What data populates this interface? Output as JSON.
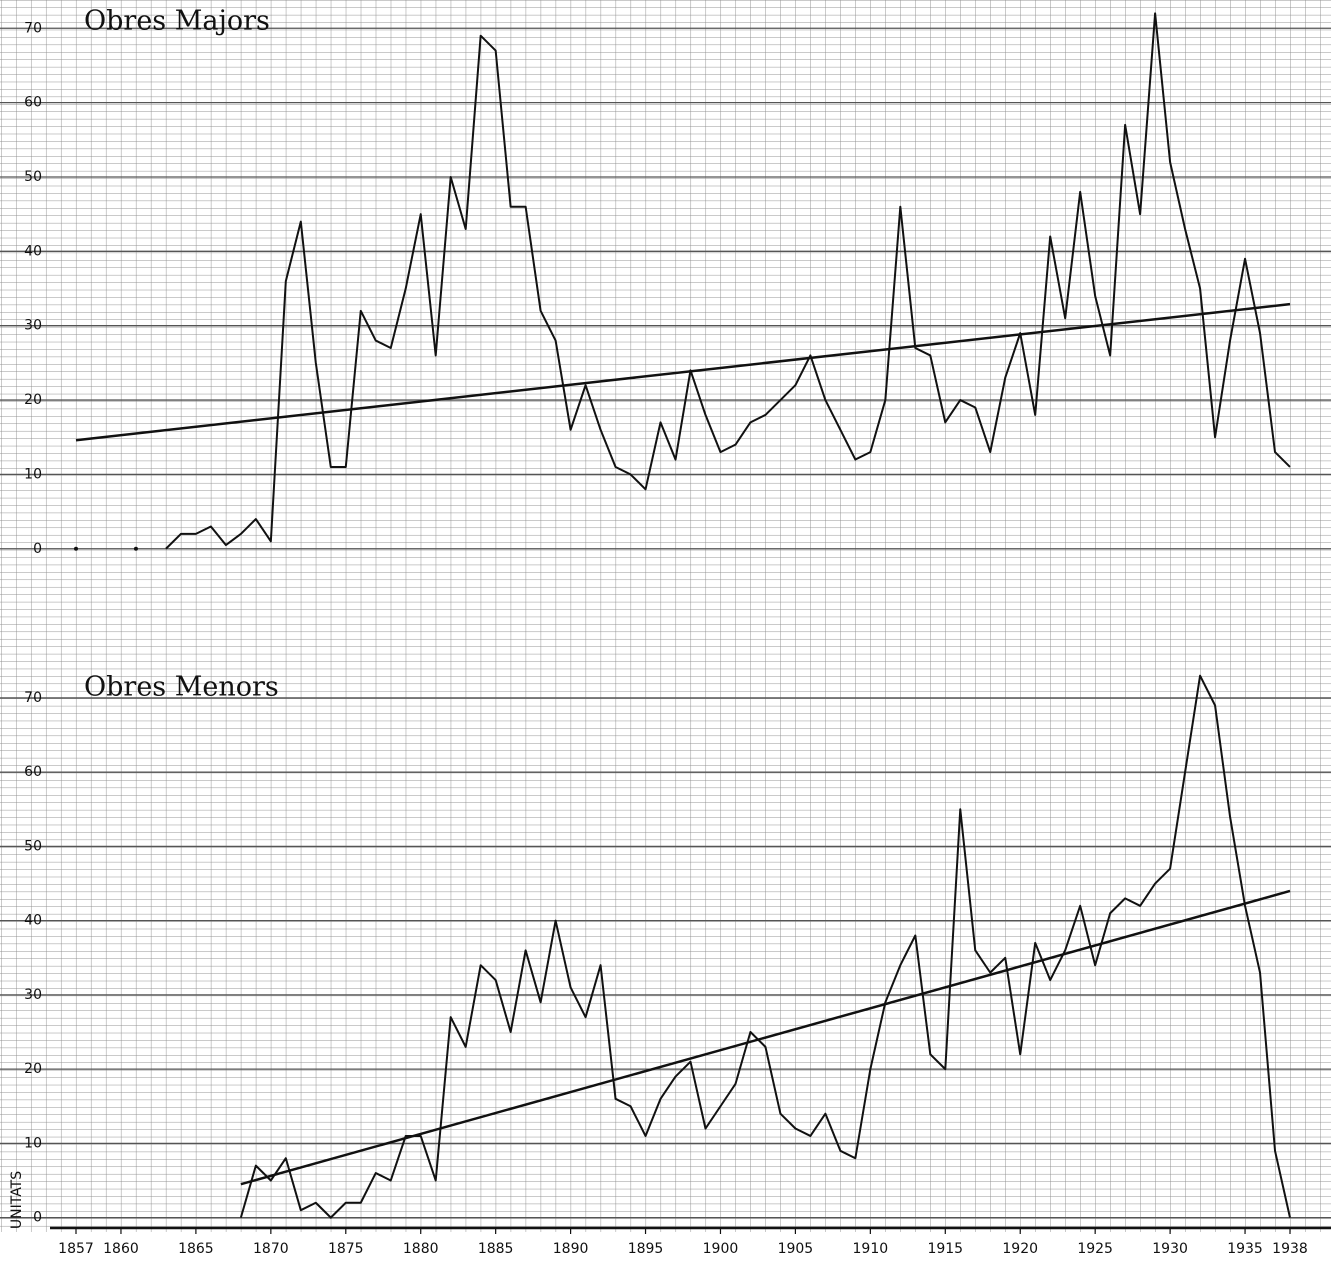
{
  "chart_data": [
    {
      "type": "line",
      "title": "Obres Majors",
      "x": [
        1857,
        1858,
        1859,
        1860,
        1861,
        1862,
        1863,
        1864,
        1865,
        1866,
        1867,
        1868,
        1869,
        1870,
        1871,
        1872,
        1873,
        1874,
        1875,
        1876,
        1877,
        1878,
        1879,
        1880,
        1881,
        1882,
        1883,
        1884,
        1885,
        1886,
        1887,
        1888,
        1889,
        1890,
        1891,
        1892,
        1893,
        1894,
        1895,
        1896,
        1897,
        1898,
        1899,
        1900,
        1901,
        1902,
        1903,
        1904,
        1905,
        1906,
        1907,
        1908,
        1909,
        1910,
        1911,
        1912,
        1913,
        1914,
        1915,
        1916,
        1917,
        1918,
        1919,
        1920,
        1921,
        1922,
        1923,
        1924,
        1925,
        1926,
        1927,
        1928,
        1929,
        1930,
        1931,
        1932,
        1933,
        1934,
        1935,
        1936,
        1937,
        1938
      ],
      "series": [
        {
          "color": "#111111",
          "values": [
            0,
            null,
            null,
            null,
            0,
            null,
            0,
            2,
            2,
            3,
            0.5,
            2,
            4,
            1,
            36,
            44,
            25,
            11,
            11,
            32,
            28,
            27,
            35,
            45,
            26,
            50,
            43,
            69,
            67,
            46,
            46,
            32,
            28,
            16,
            22,
            16,
            11,
            10,
            8,
            17,
            12,
            24,
            18,
            13,
            14,
            17,
            18,
            20,
            22,
            26,
            20,
            16,
            12,
            13,
            20,
            46,
            27,
            26,
            17,
            20,
            19,
            13,
            23,
            29,
            18,
            42,
            31,
            48,
            34,
            26,
            57,
            45,
            72,
            52,
            43,
            35,
            15,
            28,
            39,
            29,
            13,
            11
          ]
        }
      ],
      "trend": {
        "color": "#111111",
        "x": [
          1857,
          1938
        ],
        "values": [
          14.6,
          32.9
        ]
      },
      "xlim": [
        1857,
        1938
      ],
      "ylim": [
        -4.2,
        73.8
      ],
      "yticks": [
        0,
        10,
        20,
        30,
        40,
        50,
        60,
        70
      ]
    },
    {
      "type": "line",
      "title": "Obres Menors",
      "ylabel": "UNITATS",
      "x": [
        1857,
        1858,
        1859,
        1860,
        1861,
        1862,
        1863,
        1864,
        1865,
        1866,
        1867,
        1868,
        1869,
        1870,
        1871,
        1872,
        1873,
        1874,
        1875,
        1876,
        1877,
        1878,
        1879,
        1880,
        1881,
        1882,
        1883,
        1884,
        1885,
        1886,
        1887,
        1888,
        1889,
        1890,
        1891,
        1892,
        1893,
        1894,
        1895,
        1896,
        1897,
        1898,
        1899,
        1900,
        1901,
        1902,
        1903,
        1904,
        1905,
        1906,
        1907,
        1908,
        1909,
        1910,
        1911,
        1912,
        1913,
        1914,
        1915,
        1916,
        1917,
        1918,
        1919,
        1920,
        1921,
        1922,
        1923,
        1924,
        1925,
        1926,
        1927,
        1928,
        1929,
        1930,
        1931,
        1932,
        1933,
        1934,
        1935,
        1936,
        1937,
        1938
      ],
      "series": [
        {
          "color": "#111111",
          "values": [
            null,
            null,
            null,
            null,
            null,
            null,
            null,
            null,
            null,
            null,
            null,
            0,
            7,
            5,
            8,
            1,
            2,
            0,
            2,
            2,
            6,
            5,
            11,
            11,
            5,
            27,
            23,
            34,
            32,
            25,
            36,
            29,
            40,
            31,
            27,
            34,
            16,
            15,
            11,
            16,
            19,
            21,
            12,
            15,
            18,
            25,
            23,
            14,
            12,
            11,
            14,
            9,
            8,
            20,
            29,
            34,
            38,
            22,
            20,
            55,
            36,
            33,
            35,
            22,
            37,
            32,
            36,
            42,
            34,
            41,
            43,
            42,
            45,
            47,
            60,
            73,
            69,
            54,
            42,
            33,
            9,
            0
          ]
        }
      ],
      "trend": {
        "color": "#111111",
        "x": [
          1868,
          1938
        ],
        "values": [
          4.5,
          44
        ]
      },
      "xlim": [
        1857,
        1938
      ],
      "ylim": [
        -1.4,
        80.5
      ],
      "yticks": [
        0,
        10,
        20,
        30,
        40,
        50,
        60,
        70
      ],
      "xticks": [
        1857,
        1860,
        1865,
        1870,
        1875,
        1880,
        1885,
        1890,
        1895,
        1900,
        1905,
        1910,
        1915,
        1920,
        1925,
        1930,
        1935,
        1938
      ]
    }
  ]
}
